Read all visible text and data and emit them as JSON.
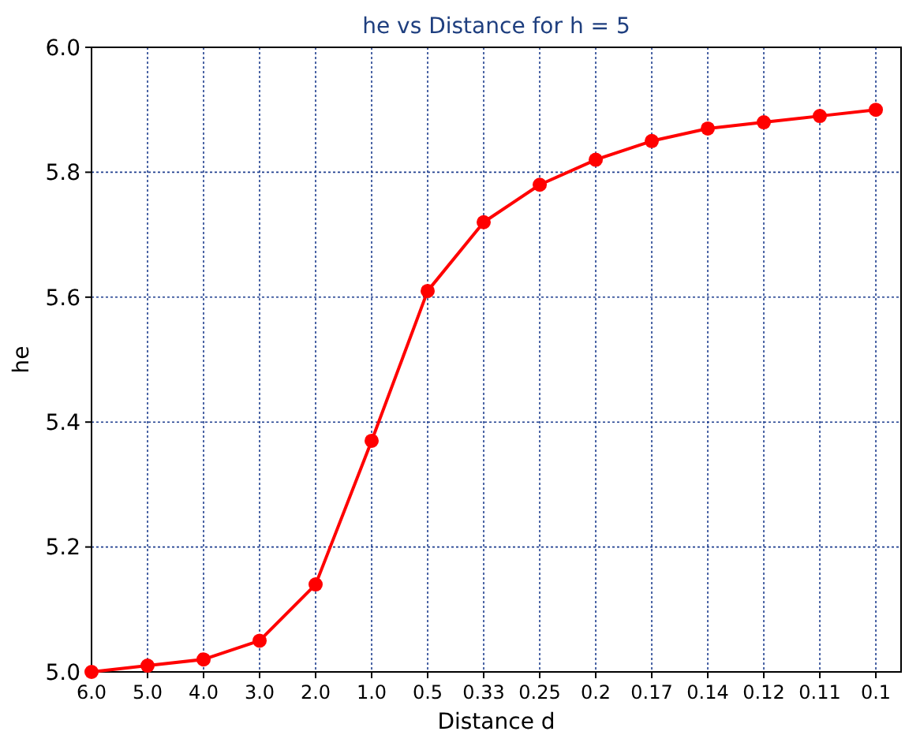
{
  "chart_data": {
    "type": "line",
    "title": "he vs Distance for h = 5",
    "xlabel": "Distance d",
    "ylabel": "he",
    "categories": [
      "6.0",
      "5.0",
      "4.0",
      "3.0",
      "2.0",
      "1.0",
      "0.5",
      "0.33",
      "0.25",
      "0.2",
      "0.17",
      "0.14",
      "0.12",
      "0.11",
      "0.1"
    ],
    "series": [
      {
        "color": "#ff0000",
        "values": [
          5.0,
          5.01,
          5.02,
          5.05,
          5.14,
          5.37,
          5.61,
          5.72,
          5.78,
          5.82,
          5.85,
          5.87,
          5.88,
          5.89,
          5.9
        ]
      }
    ],
    "ylim": [
      5.0,
      6.0
    ],
    "yticks": [
      {
        "value": 5,
        "label": "5.0"
      },
      5.2,
      5.4,
      5.6,
      5.8,
      {
        "value": 6,
        "label": "6.0"
      }
    ],
    "grid": true,
    "marker": "circle",
    "line_style": "solid"
  }
}
